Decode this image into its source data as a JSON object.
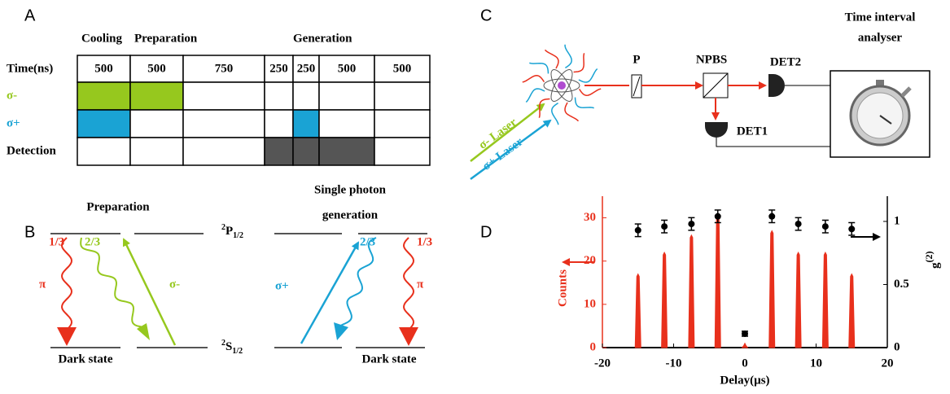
{
  "panels": {
    "a": "A",
    "b": "B",
    "c": "C",
    "d": "D"
  },
  "table": {
    "phases": [
      "Cooling",
      "Preparation",
      "Generation"
    ],
    "time_header": "Time(ns)",
    "times": [
      500,
      500,
      750,
      250,
      250,
      500,
      500
    ],
    "rows": [
      {
        "label": "σ-",
        "color": "#96c81e",
        "filled": [
          true,
          true,
          false,
          false,
          false,
          false,
          false
        ]
      },
      {
        "label": "σ+",
        "color": "#1aa3d4",
        "filled": [
          true,
          false,
          false,
          false,
          true,
          false,
          false
        ]
      },
      {
        "label": "Detection",
        "color": "#555555",
        "filled": [
          false,
          false,
          false,
          true,
          true,
          true,
          false
        ]
      }
    ]
  },
  "levels": {
    "preparation": "Preparation",
    "generation": [
      "Single photon",
      "generation"
    ],
    "upper": {
      "sup": "2",
      "main": "P",
      "sub": "1/2"
    },
    "lower": {
      "sup": "2",
      "main": "S",
      "sub": "1/2"
    },
    "dark_state": [
      "Dark state",
      "Dark state"
    ],
    "branching": [
      "1/3",
      "2/3",
      "2/3",
      "1/3"
    ],
    "pi": [
      "π",
      "π"
    ],
    "sigma_minus": "σ-",
    "sigma_plus": "σ+"
  },
  "setup": {
    "laser_minus": "σ- Laser",
    "laser_plus": "σ+ Laser",
    "polarizer": "P",
    "splitter": "NPBS",
    "det2": "DET2",
    "det1": "DET1",
    "analyser": [
      "Time interval",
      "analyser"
    ]
  },
  "chart_data": {
    "type": "bar",
    "xlabel": "Delay(µs)",
    "ylabel": "Counts",
    "y2label": {
      "main": "g",
      "sup": "(2)"
    },
    "x": [
      -15,
      -11.3,
      -7.5,
      -3.8,
      0,
      3.8,
      7.5,
      11.3,
      15
    ],
    "series": [
      {
        "color": "#e8301c",
        "values": [
          17,
          22,
          26,
          31,
          1,
          27,
          22,
          22,
          17
        ]
      },
      {
        "color": "#000000",
        "axis": "y2",
        "values": [
          0.93,
          0.96,
          0.98,
          1.04,
          0.11,
          1.04,
          0.98,
          0.96,
          0.94
        ],
        "errors": [
          0.05,
          0.05,
          0.05,
          0.05,
          0.02,
          0.05,
          0.05,
          0.05,
          0.05
        ]
      }
    ],
    "xlim": [
      -20,
      20
    ],
    "xticks": [
      -20,
      -10,
      0,
      10,
      20
    ],
    "ylim": [
      0,
      35
    ],
    "yticks": [
      0,
      10,
      20,
      30
    ],
    "y2lim": [
      0,
      1.2
    ],
    "y2ticks": [
      0,
      0.5,
      1
    ]
  }
}
